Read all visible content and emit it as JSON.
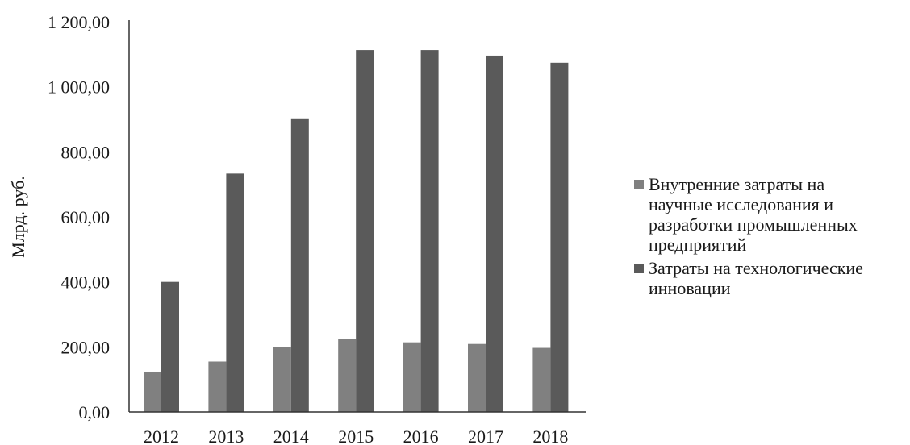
{
  "chart_data": {
    "type": "bar",
    "title": "",
    "xlabel": "",
    "ylabel": "Млрд. руб.",
    "ylim": [
      0,
      1200
    ],
    "yticks": [
      "0,00",
      "200,00",
      "400,00",
      "600,00",
      "800,00",
      "1 000,00",
      "1 200,00"
    ],
    "categories": [
      "2012",
      "2013",
      "2014",
      "2015",
      "2016",
      "2017",
      "2018"
    ],
    "series": [
      {
        "name": "Внутренние затраты на научные исследования и разработки промышленных предприятий",
        "legend_lines": [
          "Внутренние затраты на",
          "научные исследования и",
          "разработки промышленных",
          "предприятий"
        ],
        "color": "#808080",
        "values": [
          124,
          155,
          199,
          224,
          214,
          209,
          197
        ]
      },
      {
        "name": "Затраты на технологические инновации",
        "legend_lines": [
          "Затраты на технологические",
          "инновации"
        ],
        "color": "#5a5a5a",
        "values": [
          400,
          733,
          903,
          1113,
          1113,
          1096,
          1074
        ]
      }
    ],
    "grid": false,
    "legend_position": "right"
  }
}
